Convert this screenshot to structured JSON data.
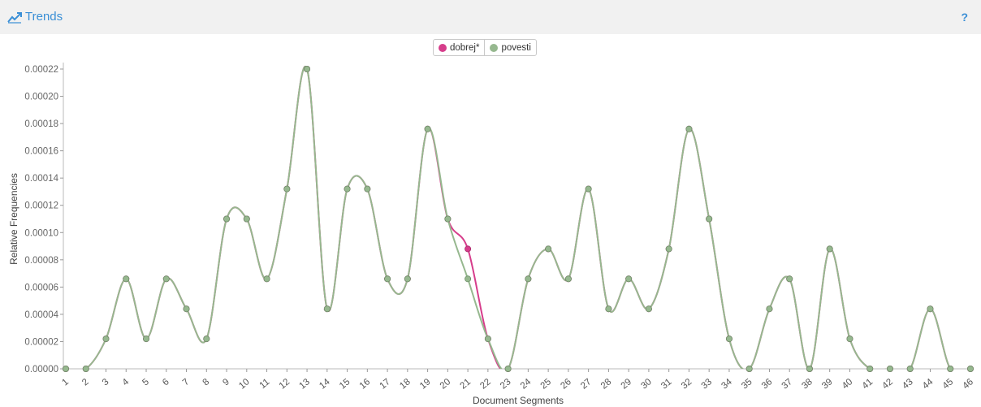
{
  "header": {
    "title": "Trends",
    "help_label": "?",
    "icon": "trend-line-icon"
  },
  "chart_data": {
    "type": "line",
    "title": "",
    "xlabel": "Document Segments",
    "ylabel": "Relative Frequencies",
    "categories": [
      "1",
      "2",
      "3",
      "4",
      "5",
      "6",
      "7",
      "8",
      "9",
      "10",
      "11",
      "12",
      "13",
      "14",
      "15",
      "16",
      "17",
      "18",
      "19",
      "20",
      "21",
      "22",
      "23",
      "24",
      "25",
      "26",
      "27",
      "28",
      "29",
      "30",
      "31",
      "32",
      "33",
      "34",
      "35",
      "36",
      "37",
      "38",
      "39",
      "40",
      "41",
      "42",
      "43",
      "44",
      "45",
      "46"
    ],
    "y_ticks": [
      "0.00000",
      "0.00002",
      "0.00004",
      "0.00006",
      "0.00008",
      "0.00010",
      "0.00012",
      "0.00014",
      "0.00016",
      "0.00018",
      "0.00020",
      "0.00022"
    ],
    "ylim": [
      0,
      0.00022
    ],
    "legend_position": "top-center",
    "grid": false,
    "series": [
      {
        "name": "dobrej*",
        "color": "#d63d8b",
        "values": [
          0,
          0,
          2.2e-05,
          6.6e-05,
          2.2e-05,
          6.6e-05,
          4.4e-05,
          2.2e-05,
          0.00011,
          0.00011,
          6.6e-05,
          0.000132,
          0.00022,
          4.4e-05,
          0.000132,
          0.000132,
          6.6e-05,
          6.6e-05,
          0.000176,
          0.00011,
          8.8e-05,
          2.2e-05,
          0,
          6.6e-05,
          8.8e-05,
          6.6e-05,
          0.000132,
          4.4e-05,
          6.6e-05,
          4.4e-05,
          8.8e-05,
          0.000176,
          0.00011,
          2.2e-05,
          0,
          4.4e-05,
          6.6e-05,
          0,
          8.8e-05,
          2.2e-05,
          0,
          0,
          0,
          4.4e-05,
          0,
          0
        ]
      },
      {
        "name": "povesti",
        "color": "#96b88f",
        "values": [
          0,
          0,
          2.2e-05,
          6.6e-05,
          2.2e-05,
          6.6e-05,
          4.4e-05,
          2.2e-05,
          0.00011,
          0.00011,
          6.6e-05,
          0.000132,
          0.00022,
          4.4e-05,
          0.000132,
          0.000132,
          6.6e-05,
          6.6e-05,
          0.000176,
          0.00011,
          6.6e-05,
          2.2e-05,
          0,
          6.6e-05,
          8.8e-05,
          6.6e-05,
          0.000132,
          4.4e-05,
          6.6e-05,
          4.4e-05,
          8.8e-05,
          0.000176,
          0.00011,
          2.2e-05,
          0,
          4.4e-05,
          6.6e-05,
          0,
          8.8e-05,
          2.2e-05,
          0,
          0,
          0,
          4.4e-05,
          0,
          0
        ]
      }
    ]
  }
}
